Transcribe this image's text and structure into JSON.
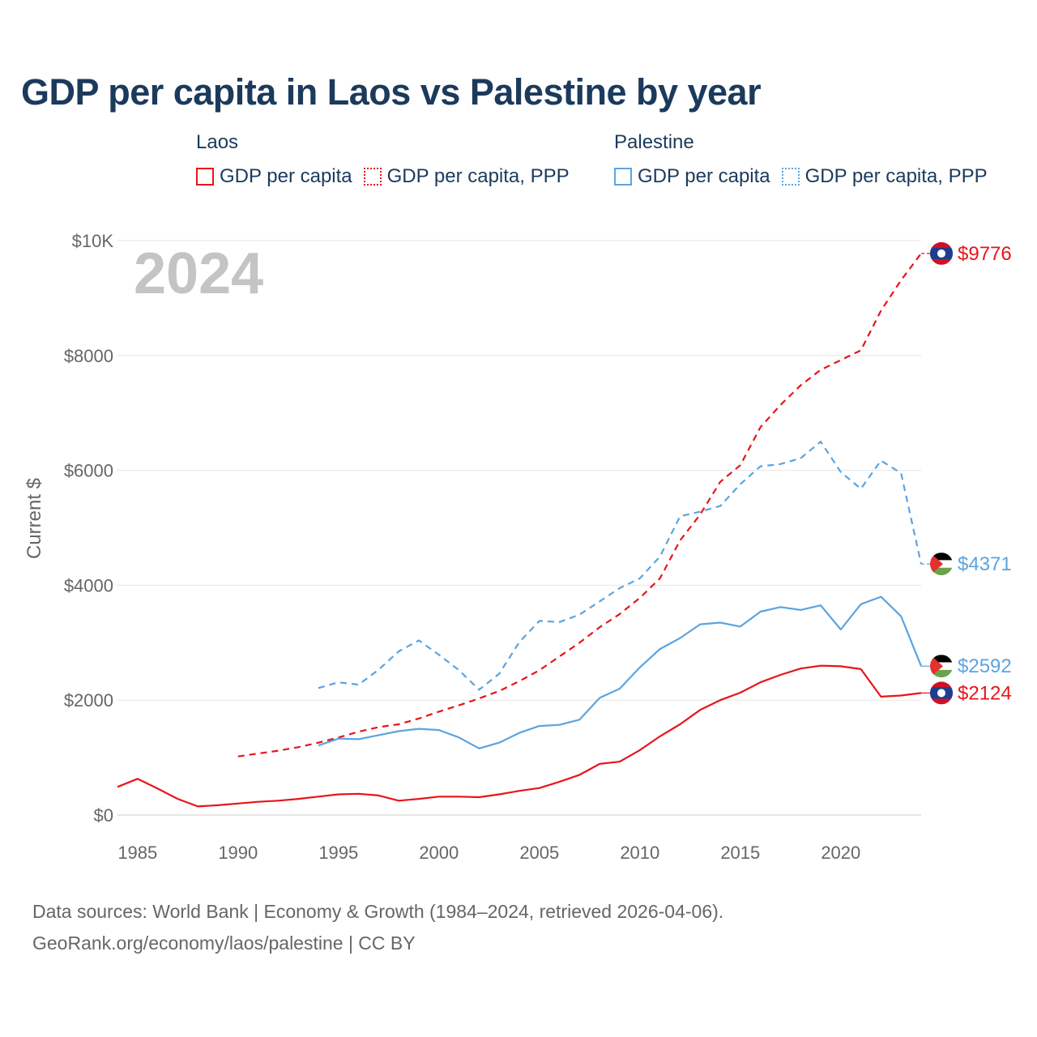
{
  "chart_data": {
    "type": "line",
    "title": "GDP per capita in Laos vs Palestine by year",
    "year_label": "2024",
    "ylabel": "Current $",
    "xlabel": "",
    "xlim": [
      1984,
      2024
    ],
    "ylim": [
      0,
      10000
    ],
    "x_ticks": [
      1985,
      1990,
      1995,
      2000,
      2005,
      2010,
      2015,
      2020
    ],
    "x_tick_labels": [
      "1985",
      "1990",
      "1995",
      "2000",
      "2005",
      "2010",
      "2015",
      "2020"
    ],
    "y_ticks": [
      0,
      2000,
      4000,
      6000,
      8000,
      10000
    ],
    "y_tick_labels": [
      "$0",
      "$2000",
      "$4000",
      "$6000",
      "$8000",
      "$10K"
    ],
    "grid": true,
    "legend": {
      "placement": "top",
      "groups": [
        {
          "name": "Laos",
          "items": [
            {
              "label": "GDP per capita",
              "style": "solid",
              "color": "#e8141a"
            },
            {
              "label": "GDP per capita, PPP",
              "style": "dotted",
              "color": "#e8141a"
            }
          ]
        },
        {
          "name": "Palestine",
          "items": [
            {
              "label": "GDP per capita",
              "style": "solid",
              "color": "#5ba4e0"
            },
            {
              "label": "GDP per capita, PPP",
              "style": "dotted",
              "color": "#5ba4e0"
            }
          ]
        }
      ]
    },
    "series": [
      {
        "name": "Laos GDP per capita",
        "country": "Laos",
        "color": "#e8141a",
        "dash": false,
        "end_label": "$2124",
        "flag": "laos",
        "x": [
          1984,
          1985,
          1986,
          1987,
          1988,
          1989,
          1990,
          1991,
          1992,
          1993,
          1994,
          1995,
          1996,
          1997,
          1998,
          1999,
          2000,
          2001,
          2002,
          2003,
          2004,
          2005,
          2006,
          2007,
          2008,
          2009,
          2010,
          2011,
          2012,
          2013,
          2014,
          2015,
          2016,
          2017,
          2018,
          2019,
          2020,
          2021,
          2022,
          2023,
          2024
        ],
        "values": [
          490,
          630,
          460,
          280,
          150,
          170,
          200,
          230,
          250,
          280,
          320,
          360,
          370,
          340,
          250,
          280,
          320,
          320,
          310,
          360,
          420,
          470,
          580,
          700,
          890,
          930,
          1130,
          1370,
          1580,
          1830,
          2000,
          2130,
          2310,
          2440,
          2550,
          2600,
          2590,
          2540,
          2060,
          2080,
          2124
        ]
      },
      {
        "name": "Laos GDP per capita, PPP",
        "country": "Laos",
        "color": "#e8141a",
        "dash": true,
        "end_label": "$9776",
        "flag": "laos",
        "x": [
          1990,
          1991,
          1992,
          1993,
          1994,
          1995,
          1996,
          1997,
          1998,
          1999,
          2000,
          2001,
          2002,
          2003,
          2004,
          2005,
          2006,
          2007,
          2008,
          2009,
          2010,
          2011,
          2012,
          2013,
          2014,
          2015,
          2016,
          2017,
          2018,
          2019,
          2020,
          2021,
          2022,
          2023,
          2024
        ],
        "values": [
          1020,
          1070,
          1120,
          1180,
          1260,
          1350,
          1450,
          1530,
          1580,
          1680,
          1800,
          1910,
          2030,
          2160,
          2330,
          2520,
          2760,
          3000,
          3270,
          3500,
          3780,
          4120,
          4780,
          5230,
          5800,
          6090,
          6750,
          7140,
          7480,
          7750,
          7920,
          8090,
          8780,
          9310,
          9776
        ]
      },
      {
        "name": "Palestine GDP per capita",
        "country": "Palestine",
        "color": "#5ba4e0",
        "dash": false,
        "end_label": "$2592",
        "flag": "palestine",
        "x": [
          1994,
          1995,
          1996,
          1997,
          1998,
          1999,
          2000,
          2001,
          2002,
          2003,
          2004,
          2005,
          2006,
          2007,
          2008,
          2009,
          2010,
          2011,
          2012,
          2013,
          2014,
          2015,
          2016,
          2017,
          2018,
          2019,
          2020,
          2021,
          2022,
          2023,
          2024
        ],
        "values": [
          1210,
          1330,
          1320,
          1390,
          1460,
          1500,
          1480,
          1350,
          1160,
          1260,
          1430,
          1550,
          1570,
          1660,
          2040,
          2200,
          2570,
          2890,
          3080,
          3320,
          3350,
          3280,
          3540,
          3620,
          3570,
          3650,
          3230,
          3670,
          3800,
          3460,
          2592
        ]
      },
      {
        "name": "Palestine GDP per capita, PPP",
        "country": "Palestine",
        "color": "#5ba4e0",
        "dash": true,
        "end_label": "$4371",
        "flag": "palestine",
        "x": [
          1994,
          1995,
          1996,
          1997,
          1998,
          1999,
          2000,
          2001,
          2002,
          2003,
          2004,
          2005,
          2006,
          2007,
          2008,
          2009,
          2010,
          2011,
          2012,
          2013,
          2014,
          2015,
          2016,
          2017,
          2018,
          2019,
          2020,
          2021,
          2022,
          2023,
          2024
        ],
        "values": [
          2210,
          2310,
          2270,
          2530,
          2850,
          3040,
          2790,
          2520,
          2180,
          2460,
          3010,
          3380,
          3360,
          3490,
          3720,
          3950,
          4120,
          4500,
          5200,
          5280,
          5380,
          5760,
          6070,
          6110,
          6210,
          6500,
          5970,
          5680,
          6170,
          5950,
          4371
        ]
      }
    ]
  },
  "footer": {
    "line1": "Data sources: World Bank | Economy & Growth (1984–2024, retrieved 2026-04-06).",
    "line2": "GeoRank.org/economy/laos/palestine | CC BY"
  }
}
